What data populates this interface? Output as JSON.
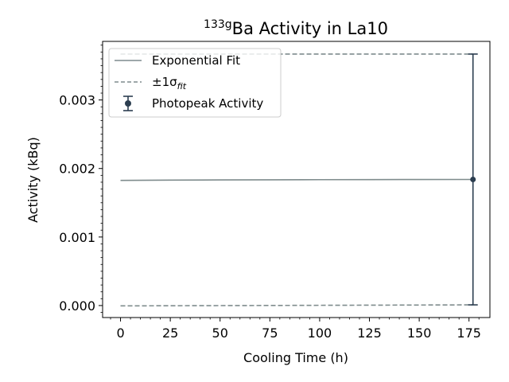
{
  "chart_data": {
    "type": "line",
    "title_sup": "133g",
    "title_main": "Ba Activity in La10",
    "xlabel": "Cooling Time (h)",
    "ylabel": "Activity (kBq)",
    "xlim": [
      -9,
      185.5
    ],
    "ylim": [
      -0.000175,
      0.003855
    ],
    "xticks": [
      0,
      25,
      50,
      75,
      100,
      125,
      150,
      175
    ],
    "xtick_labels": [
      "0",
      "25",
      "50",
      "75",
      "100",
      "125",
      "150",
      "175"
    ],
    "yticks": [
      0.0,
      0.001,
      0.002,
      0.003
    ],
    "ytick_labels": [
      "0.000",
      "0.001",
      "0.002",
      "0.003"
    ],
    "legend_position": "upper-left",
    "legend": {
      "fit": "Exponential Fit",
      "sigma_prefix": "±1σ",
      "sigma_sub": "fit",
      "points": "Photopeak Activity"
    },
    "colors": {
      "fit": "#7f8c8d",
      "band": "#7f8c8d",
      "points": "#2c3e50"
    },
    "series": [
      {
        "name": "Exponential Fit",
        "style": "solid",
        "x": [
          0,
          25,
          50,
          75,
          100,
          125,
          150,
          177
        ],
        "y": [
          0.001826,
          0.00183,
          0.001833,
          0.001835,
          0.001837,
          0.001838,
          0.001839,
          0.00184
        ]
      },
      {
        "name": "upper",
        "style": "dashed",
        "x": [
          0,
          177
        ],
        "y": [
          0.00367,
          0.00367
        ]
      },
      {
        "name": "lower",
        "style": "dashed",
        "x": [
          0,
          177
        ],
        "y": [
          -5e-06,
          1e-05
        ]
      },
      {
        "name": "Photopeak Activity",
        "style": "errorbar",
        "x": [
          177
        ],
        "y": [
          0.00184
        ],
        "yerr_low": [
          1e-05
        ],
        "yerr_high": [
          0.00367
        ]
      }
    ]
  }
}
